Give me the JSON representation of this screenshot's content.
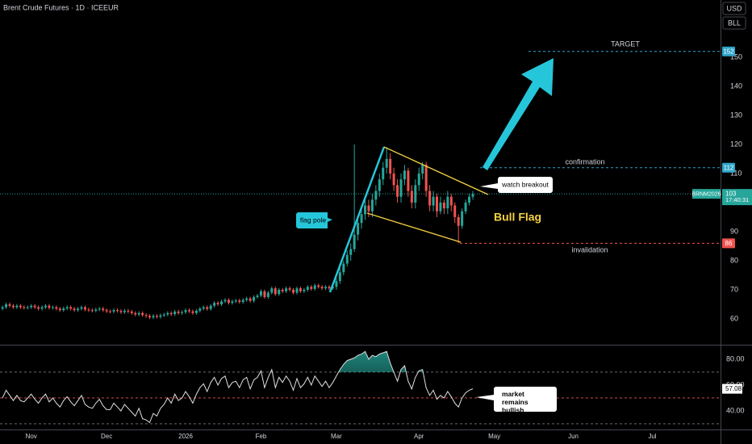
{
  "header": {
    "title": "Brent Crude Futures · 1D · ICEEUR",
    "currency": "USD",
    "unit": "BLL"
  },
  "chart_data": [
    {
      "type": "candlestick",
      "symbol": "BRNM2026",
      "countdown": "17:40:31",
      "up_color": "#26a69a",
      "down_color": "#ef5350",
      "xlim": [
        -0.7,
        200
      ],
      "ylim": [
        51.1,
        169.7
      ],
      "yticks": [
        60,
        70,
        80,
        90,
        100,
        110,
        120,
        130,
        140,
        150
      ],
      "open": [
        63.5,
        64,
        65,
        64.5,
        64,
        64.5,
        64,
        63.8,
        64,
        64.5,
        64,
        63.5,
        64,
        64.5,
        63.8,
        64,
        63.5,
        63,
        63.6,
        64,
        63.5,
        63,
        63.5,
        64,
        63.2,
        63,
        62.8,
        63.2,
        63.5,
        63,
        62.6,
        62.5,
        63,
        62.7,
        62.3,
        62.8,
        62.5,
        62,
        61.5,
        62,
        61.3,
        61,
        60.5,
        61,
        60.7,
        61.2,
        61.5,
        62,
        61.6,
        62.5,
        62,
        62.3,
        63,
        62.6,
        62,
        62.8,
        63.5,
        64,
        63.4,
        64.5,
        65.5,
        65,
        66,
        66.5,
        65.5,
        66,
        66.3,
        65.8,
        66.5,
        67,
        66.2,
        67.5,
        68,
        69.5,
        67.5,
        69,
        70.5,
        68.5,
        70,
        69.5,
        70.5,
        70,
        69,
        70.5,
        69.5,
        70,
        71,
        70.3,
        71.5,
        71,
        70.5,
        71,
        70.5,
        71,
        73,
        76,
        79,
        82,
        84,
        89,
        93,
        96,
        99,
        97,
        101,
        104,
        108,
        112,
        115,
        110,
        106,
        102,
        108,
        111,
        104,
        100,
        106,
        110,
        113,
        104,
        99,
        102,
        97,
        100,
        98,
        102,
        99,
        95,
        92,
        97,
        100,
        102
      ],
      "high": [
        64.6,
        65.6,
        65.6,
        65.1,
        65.1,
        65.1,
        64.6,
        64.6,
        65.1,
        65.1,
        64.6,
        64.6,
        65.1,
        65.1,
        64.6,
        64.6,
        64.1,
        64.2,
        64.6,
        64.6,
        64.1,
        64.1,
        64.6,
        64.6,
        63.8,
        63.6,
        63.8,
        64.1,
        64.1,
        63.6,
        63.2,
        63.6,
        63.6,
        63.3,
        63.4,
        63.4,
        63.1,
        62.6,
        62.6,
        62.6,
        61.9,
        61.6,
        61.6,
        61.6,
        61.8,
        62.1,
        62.6,
        62.6,
        63.1,
        63.1,
        62.9,
        63.6,
        63.6,
        63.2,
        63.4,
        64.1,
        64.6,
        64.6,
        65.1,
        66.1,
        66.1,
        66.6,
        67.1,
        67.1,
        66.6,
        66.9,
        66.9,
        67.1,
        67.6,
        67.6,
        68.1,
        68.6,
        70.1,
        70.1,
        69.6,
        71.1,
        71.1,
        70.6,
        70.6,
        71.1,
        71.1,
        70.6,
        71.1,
        71.1,
        70.6,
        71.6,
        71.6,
        72.1,
        72.1,
        71.6,
        71.6,
        71.6,
        72,
        74,
        77.5,
        80,
        83.5,
        86,
        120,
        95,
        98,
        101,
        101,
        103,
        106,
        110,
        114,
        119,
        117,
        112,
        108,
        110,
        113,
        112,
        106,
        108,
        112,
        114,
        114,
        106,
        104,
        103,
        102,
        101,
        104,
        103,
        100,
        96,
        98,
        101,
        103,
        104
      ],
      "low": [
        62.9,
        63.4,
        63.9,
        63.4,
        63.4,
        63.4,
        63.2,
        63.2,
        63.4,
        63.4,
        62.9,
        62.9,
        63.4,
        63.2,
        63.2,
        62.9,
        62.4,
        62.4,
        63,
        62.9,
        62.4,
        62.4,
        62.9,
        62.6,
        62.4,
        62.2,
        62.2,
        62.6,
        62.4,
        62,
        61.9,
        61.9,
        62.1,
        61.7,
        61.7,
        61.9,
        61.4,
        60.9,
        60.9,
        60.7,
        60.4,
        59.9,
        59.9,
        60.1,
        60.1,
        60.6,
        60.9,
        61,
        61,
        61.4,
        61.4,
        61.7,
        62,
        61.4,
        61.4,
        62.2,
        62.9,
        62.8,
        62.8,
        63.9,
        64.4,
        64.4,
        65.4,
        64.9,
        64.9,
        65.4,
        65.2,
        65.2,
        65.9,
        65.6,
        65.6,
        66.9,
        67.4,
        66.9,
        66.9,
        68.4,
        67.9,
        67.9,
        68.9,
        68.9,
        69.4,
        68.4,
        68.4,
        68.9,
        68.9,
        69.4,
        69.7,
        69.7,
        70.4,
        69.9,
        69.9,
        69.9,
        70,
        70,
        72,
        75,
        78,
        80,
        83,
        87,
        91,
        94,
        95,
        95,
        99,
        102,
        106,
        110,
        108,
        104,
        100,
        100,
        106,
        102,
        98,
        98,
        104,
        108,
        102,
        97,
        97,
        95,
        96,
        96,
        96,
        97,
        93,
        86,
        91,
        96,
        99,
        101
      ],
      "close": [
        64,
        65,
        64.5,
        64,
        64.5,
        64,
        63.8,
        64,
        64.5,
        64,
        63.5,
        64,
        64.5,
        63.8,
        64,
        63.5,
        63,
        63.6,
        64,
        63.5,
        63,
        63.5,
        64,
        63.2,
        63,
        62.8,
        63.2,
        63.5,
        63,
        62.6,
        62.5,
        63,
        62.7,
        62.3,
        62.8,
        62.5,
        62,
        61.5,
        62,
        61.3,
        61,
        60.5,
        61,
        60.7,
        61.2,
        61.5,
        62,
        61.6,
        62.5,
        62,
        62.3,
        63,
        62.6,
        62,
        62.8,
        63.5,
        64,
        63.4,
        64.5,
        65.5,
        65,
        66,
        66.5,
        65.5,
        66,
        66.3,
        65.8,
        66.5,
        67,
        66.2,
        67.5,
        68,
        69.5,
        67.5,
        69,
        70.5,
        68.5,
        70,
        69.5,
        70.5,
        70,
        69,
        70.5,
        69.5,
        70,
        71,
        70.3,
        71.5,
        71,
        70.5,
        71,
        70.5,
        71,
        73,
        76,
        79,
        82,
        84,
        89,
        93,
        96,
        99,
        97,
        101,
        104,
        108,
        112,
        115,
        110,
        106,
        102,
        108,
        111,
        104,
        100,
        106,
        110,
        113,
        104,
        99,
        102,
        97,
        100,
        98,
        102,
        99,
        95,
        92,
        97,
        100,
        102,
        103
      ],
      "levels": [
        {
          "name": "TARGET",
          "value": 152,
          "color": "#2ea5c9"
        },
        {
          "name": "confirmation",
          "value": 112,
          "color": "#2ea5c9"
        },
        {
          "name": "invalidation",
          "value": 86,
          "color": "#ef5350"
        }
      ],
      "annotations": [
        "flag pole",
        "watch breakout",
        "Bull Flag"
      ]
    },
    {
      "type": "line",
      "color": "#e0e0e0",
      "xlim": [
        -0.7,
        200
      ],
      "ylim": [
        25.6,
        90.6
      ],
      "yticks": [
        {
          "value": 40,
          "label": "40.00"
        },
        {
          "value": 60,
          "label": "60.00"
        },
        {
          "value": 80,
          "label": "80.00"
        }
      ],
      "bands": [
        70,
        50,
        30
      ],
      "values": [
        50,
        56,
        52,
        48,
        52,
        48,
        47,
        50,
        53,
        49,
        46,
        50,
        53,
        47,
        50,
        46,
        43,
        48,
        51,
        47,
        44,
        48,
        52,
        45,
        43,
        42,
        46,
        49,
        44,
        41,
        41,
        46,
        43,
        40,
        45,
        42,
        39,
        36,
        42,
        34,
        33,
        31,
        38,
        36,
        42,
        45,
        50,
        46,
        53,
        48,
        50,
        55,
        51,
        46,
        53,
        58,
        61,
        55,
        62,
        66,
        60,
        65,
        67,
        58,
        62,
        63,
        58,
        64,
        66,
        57,
        64,
        66,
        71,
        58,
        66,
        72,
        58,
        66,
        62,
        67,
        63,
        56,
        65,
        58,
        61,
        66,
        60,
        67,
        63,
        59,
        63,
        58,
        62,
        67,
        72,
        76,
        79,
        80,
        81,
        83,
        84,
        86,
        80,
        83,
        82,
        84,
        85,
        86,
        77,
        70,
        63,
        72,
        75,
        63,
        57,
        66,
        71,
        72,
        58,
        52,
        56,
        49,
        52,
        50,
        55,
        51,
        46,
        43,
        50,
        54,
        56,
        57.08
      ],
      "value_labels": {
        "131": "57.08"
      },
      "xticks": [
        {
          "value": 8,
          "label": "Nov"
        },
        {
          "value": 29,
          "label": "Dec"
        },
        {
          "value": 51,
          "label": "2026"
        },
        {
          "value": 72,
          "label": "Feb"
        },
        {
          "value": 93,
          "label": "Mar"
        },
        {
          "value": 116,
          "label": "Apr"
        },
        {
          "value": 137,
          "label": "May"
        },
        {
          "value": 159,
          "label": "Jun"
        },
        {
          "value": 181,
          "label": "Jul"
        }
      ],
      "annotations": [
        "market remains bullish"
      ]
    }
  ]
}
